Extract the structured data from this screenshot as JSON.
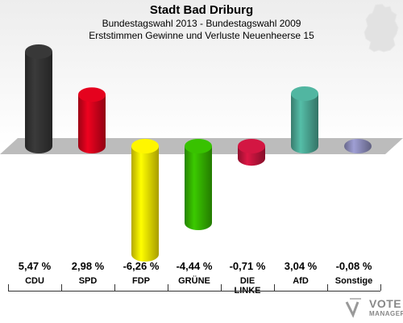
{
  "title": "Stadt Bad Driburg",
  "subtitle1": "Bundestagswahl 2013 - Bundestagswahl 2009",
  "subtitle2": "Erststimmen Gewinne und Verluste Neuenheerse 15",
  "logo": {
    "line1": "VOTE",
    "line2": "MANAGER"
  },
  "chart_data": {
    "type": "bar",
    "title": "Stadt Bad Driburg",
    "categories": [
      "CDU",
      "SPD",
      "FDP",
      "GRÜNE",
      "DIE LINKE",
      "AfD",
      "Sonstige"
    ],
    "value_labels": [
      "5,47 %",
      "2,98 %",
      "-6,26 %",
      "-4,44 %",
      "-0,71 %",
      "3,04 %",
      "-0,08 %"
    ],
    "values": [
      5.47,
      2.98,
      -6.26,
      -4.44,
      -0.71,
      3.04,
      -0.08
    ],
    "colors": [
      "#333333",
      "#d0021b",
      "#f0e000",
      "#33b000",
      "#c0143c",
      "#4aa592",
      "#8a8ab8"
    ],
    "unit": "%"
  }
}
